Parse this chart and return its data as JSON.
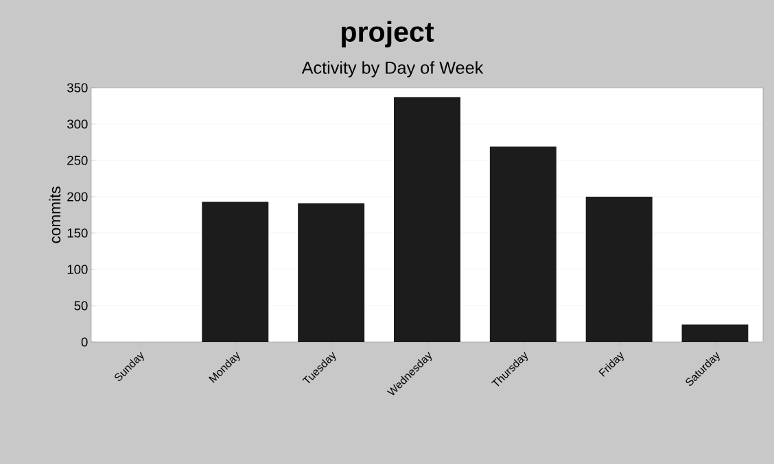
{
  "chart_data": {
    "type": "bar",
    "title": "project",
    "subtitle": "Activity by Day of Week",
    "ylabel": "commits",
    "categories": [
      "Sunday",
      "Monday",
      "Tuesday",
      "Wednesday",
      "Thursday",
      "Friday",
      "Saturday"
    ],
    "values": [
      0,
      193,
      191,
      337,
      269,
      200,
      24
    ],
    "color": "#1c1c1c",
    "ylim": [
      0,
      350
    ],
    "yticks": [
      0,
      50,
      100,
      150,
      200,
      250,
      300,
      350
    ],
    "grid": "y"
  }
}
